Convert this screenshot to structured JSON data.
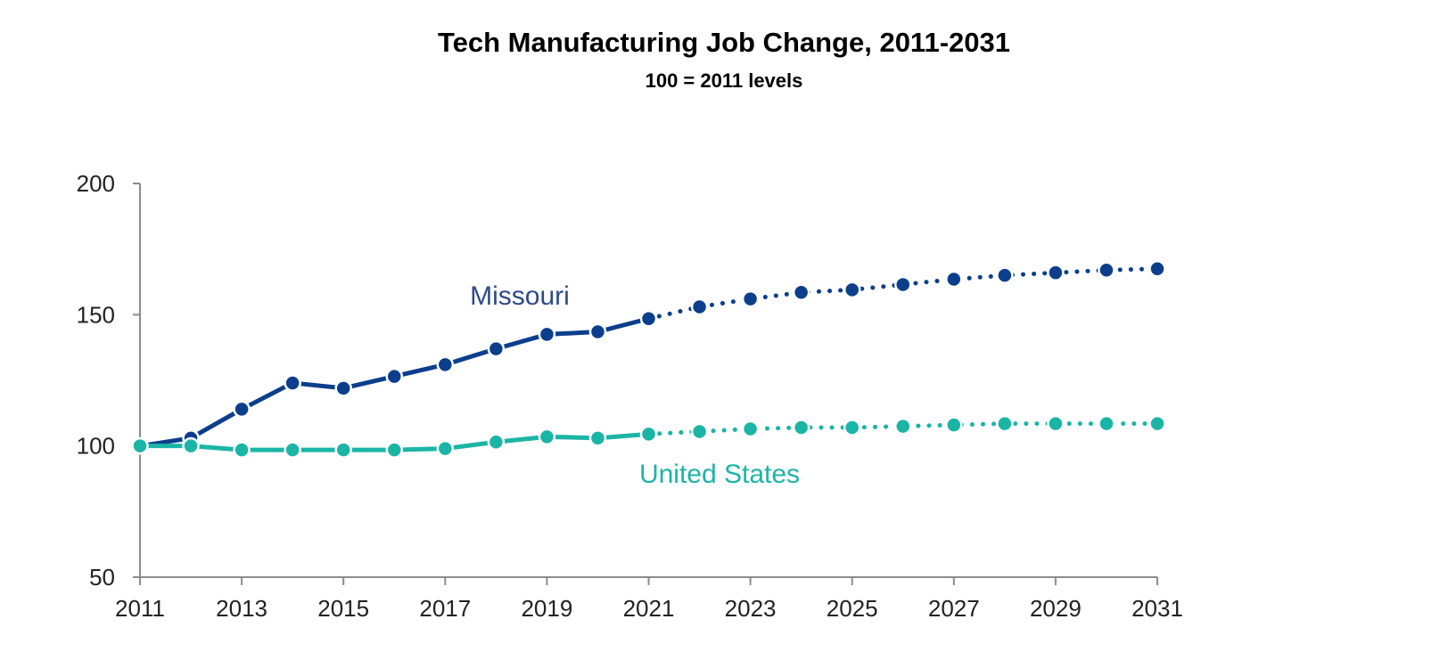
{
  "chart_data": {
    "type": "line",
    "title": "Tech Manufacturing Job Change, 2011-2031",
    "subtitle": "100 = 2011 levels",
    "xlabel": "",
    "ylabel": "",
    "x": [
      2011,
      2012,
      2013,
      2014,
      2015,
      2016,
      2017,
      2018,
      2019,
      2020,
      2021,
      2022,
      2023,
      2024,
      2025,
      2026,
      2027,
      2028,
      2029,
      2030,
      2031
    ],
    "x_ticks": [
      2011,
      2013,
      2015,
      2017,
      2019,
      2021,
      2023,
      2025,
      2027,
      2029,
      2031
    ],
    "y_ticks": [
      50,
      100,
      150,
      200
    ],
    "xlim": [
      2011,
      2031
    ],
    "ylim": [
      50,
      200
    ],
    "grid": false,
    "legend": "inline labels",
    "projection_start": 2021,
    "series": [
      {
        "name": "Missouri",
        "color": "#0b3f8c",
        "label_color": "#2d4a8a",
        "values": [
          100,
          103,
          114,
          124,
          122,
          126.5,
          131,
          137,
          142.5,
          143.5,
          148.5,
          153,
          156,
          158.5,
          159.5,
          161.5,
          163.5,
          165,
          166,
          167,
          167.5
        ]
      },
      {
        "name": "United States",
        "color": "#1bb5a6",
        "label_color": "#1bb5a6",
        "values": [
          100,
          100,
          98.5,
          98.5,
          98.5,
          98.5,
          99,
          101.5,
          103.5,
          103,
          104.5,
          105.5,
          106.5,
          107,
          107,
          107.5,
          108,
          108.5,
          108.5,
          108.5,
          108.5
        ]
      }
    ]
  }
}
